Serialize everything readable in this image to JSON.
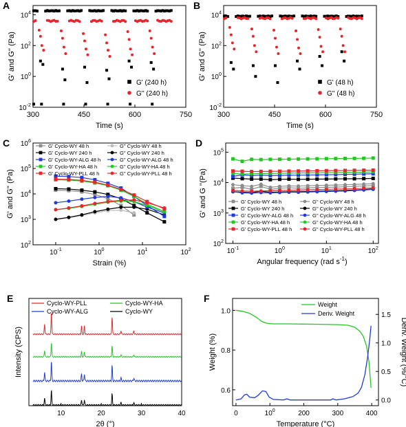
{
  "chart_data": [
    {
      "panel": "A",
      "type": "scatter",
      "xlabel": "Time (s)",
      "ylabel": "G' and G'' (Pa)",
      "xlim": [
        300,
        750
      ],
      "ylim_log10": [
        -2,
        4.6
      ],
      "x_ticks": [
        "300",
        "450",
        "600",
        "750"
      ],
      "y_ticks": [
        "10-2",
        "100",
        "102",
        "104"
      ],
      "legend_position": "bottom-right",
      "series": [
        {
          "name": "G'  (240 h)",
          "marker": "square",
          "color": "#000000",
          "high_value": 18000,
          "low_value": 0.016,
          "dips": [
            [
              322,
              10
            ],
            [
              329,
              6
            ],
            [
              387,
              3
            ],
            [
              394,
              0.6
            ],
            [
              452,
              4
            ],
            [
              459,
              0.4
            ],
            [
              517,
              2.5
            ],
            [
              524,
              0.7
            ],
            [
              583,
              10
            ],
            [
              590,
              4
            ],
            [
              648,
              8
            ],
            [
              655,
              3
            ]
          ]
        },
        {
          "name": "G''  (240 h)",
          "marker": "circle",
          "color": "#e8262a",
          "high_value": 4000,
          "dips": [
            [
              318,
              1000
            ],
            [
              322,
              400
            ],
            [
              326,
              100
            ],
            [
              331,
              50
            ],
            [
              383,
              900
            ],
            [
              387,
              300
            ],
            [
              391,
              80
            ],
            [
              396,
              30
            ],
            [
              448,
              600
            ],
            [
              452,
              200
            ],
            [
              456,
              60
            ],
            [
              461,
              25
            ],
            [
              513,
              500
            ],
            [
              517,
              150
            ],
            [
              521,
              50
            ],
            [
              526,
              20
            ],
            [
              579,
              800
            ],
            [
              583,
              250
            ],
            [
              587,
              60
            ],
            [
              592,
              25
            ],
            [
              644,
              900
            ],
            [
              648,
              300
            ],
            [
              652,
              80
            ],
            [
              657,
              30
            ]
          ]
        }
      ]
    },
    {
      "panel": "B",
      "type": "scatter",
      "xlabel": "Time (s)",
      "ylabel": "G' and G'' (Pa)",
      "xlim": [
        300,
        750
      ],
      "ylim_log10": [
        -2,
        4.6
      ],
      "x_ticks": [
        "300",
        "450",
        "600",
        "750"
      ],
      "y_ticks": [
        "10-2",
        "100",
        "102",
        "104"
      ],
      "legend_position": "bottom-right",
      "series": [
        {
          "name": "G'  (48 h)",
          "marker": "square",
          "color": "#000000",
          "high_value": 8000,
          "dips": [
            [
              322,
              8
            ],
            [
              329,
              3
            ],
            [
              387,
              5
            ],
            [
              394,
              1
            ],
            [
              452,
              5
            ],
            [
              459,
              0.4
            ],
            [
              517,
              10
            ],
            [
              524,
              3
            ],
            [
              583,
              20
            ],
            [
              590,
              5
            ],
            [
              648,
              40
            ],
            [
              655,
              10
            ]
          ]
        },
        {
          "name": "G''  (48 h)",
          "marker": "circle",
          "color": "#e8262a",
          "high_value": 6000,
          "dips": [
            [
              318,
              1500
            ],
            [
              322,
              500
            ],
            [
              326,
              150
            ],
            [
              331,
              60
            ],
            [
              383,
              1200
            ],
            [
              387,
              400
            ],
            [
              391,
              100
            ],
            [
              396,
              40
            ],
            [
              448,
              1000
            ],
            [
              452,
              300
            ],
            [
              456,
              80
            ],
            [
              461,
              30
            ],
            [
              513,
              900
            ],
            [
              517,
              250
            ],
            [
              521,
              70
            ],
            [
              526,
              30
            ],
            [
              579,
              1100
            ],
            [
              583,
              350
            ],
            [
              587,
              90
            ],
            [
              592,
              40
            ],
            [
              644,
              1200
            ],
            [
              648,
              400
            ],
            [
              652,
              100
            ],
            [
              657,
              40
            ]
          ]
        }
      ]
    },
    {
      "panel": "C",
      "type": "line",
      "xlabel": "Strain (%)",
      "ylabel": "G' and G'' (Pa)",
      "x_log": true,
      "y_log": true,
      "xlim": [
        0.03,
        100
      ],
      "ylim": [
        100,
        1000000
      ],
      "x_ticks": [
        "10-1",
        "100",
        "101",
        "102"
      ],
      "y_ticks": [
        "102",
        "103",
        "104",
        "105",
        "106"
      ],
      "legend_position": "top",
      "x": [
        0.1,
        0.2,
        0.4,
        0.8,
        1.6,
        3.2,
        6.4,
        12.8,
        32
      ],
      "series": [
        {
          "name": "G' Cyclo-WY 48 h",
          "color": "#8c8c8c",
          "marker": "square",
          "values": [
            14000,
            13500,
            12000,
            9500,
            6500,
            3500,
            1500,
            null,
            null
          ]
        },
        {
          "name": "G'' Cyclo-WY 48 h",
          "color": "#bdbdbd",
          "marker": "circle",
          "values": [
            1000,
            1150,
            1400,
            1800,
            2200,
            2300,
            1800,
            null,
            null
          ]
        },
        {
          "name": "G' Cyclo-WY 240 h",
          "color": "#000000",
          "marker": "square",
          "values": [
            16000,
            15500,
            14000,
            12000,
            9500,
            6500,
            3500,
            1800,
            800
          ]
        },
        {
          "name": "G'' Cyclo-WY 240 h",
          "color": "#000000",
          "marker": "circle",
          "values": [
            1000,
            1200,
            1500,
            2000,
            2500,
            3000,
            3000,
            2500,
            1500
          ]
        },
        {
          "name": "G' Cyclo-WY-ALG 48 h",
          "color": "#1f3bd8",
          "marker": "square",
          "values": [
            50000,
            48000,
            44000,
            36000,
            26000,
            17000,
            8000,
            3500,
            1300
          ]
        },
        {
          "name": "G'' Cyclo-WY-ALG 48 h",
          "color": "#1f3bd8",
          "marker": "circle",
          "values": [
            4500,
            5200,
            6200,
            7200,
            8000,
            7000,
            5000,
            3000,
            1800
          ]
        },
        {
          "name": "G' Cyclo-WY-HA 48 h",
          "color": "#22c822",
          "marker": "square",
          "values": [
            36000,
            35000,
            32000,
            27000,
            21000,
            14000,
            8000,
            4000,
            2000
          ]
        },
        {
          "name": "G'' Cyclo-WY-HA 48 h",
          "color": "#22c822",
          "marker": "circle",
          "values": [
            2400,
            2700,
            3200,
            3900,
            4700,
            5200,
            5000,
            3500,
            2000
          ]
        },
        {
          "name": "G' Cyclo-WY-PLL 48 h",
          "color": "#e8262a",
          "marker": "square",
          "values": [
            38000,
            37000,
            34000,
            29000,
            22000,
            15000,
            9000,
            5000,
            2600
          ]
        },
        {
          "name": "G'' Cyclo-WY-PLL 48 h",
          "color": "#e8262a",
          "marker": "circle",
          "values": [
            2400,
            2800,
            3400,
            4200,
            5000,
            5600,
            5800,
            4500,
            2800
          ]
        }
      ]
    },
    {
      "panel": "D",
      "type": "line",
      "xlabel": "Angular frequency (rad s-1)",
      "ylabel": "G' and G ''(Pa)",
      "x_log": true,
      "y_log": true,
      "xlim": [
        0.07,
        130
      ],
      "ylim": [
        100,
        200000
      ],
      "x_ticks": [
        "10-1",
        "100",
        "101",
        "102"
      ],
      "y_ticks": [
        "102",
        "103",
        "104",
        "105"
      ],
      "legend_position": "bottom",
      "x": [
        0.1,
        0.158,
        0.251,
        0.398,
        0.631,
        1.0,
        1.58,
        2.51,
        3.98,
        6.31,
        10,
        15.8,
        25.1,
        39.8,
        63.1,
        100
      ],
      "series": [
        {
          "name": "G' Cyclo-WY 48 h",
          "color": "#8c8c8c",
          "marker": "square",
          "values": [
            6500,
            7000,
            6000,
            7500,
            6000,
            6500,
            6800,
            6500,
            6700,
            6900,
            7000,
            7100,
            7300,
            7500,
            7700,
            8000
          ]
        },
        {
          "name": "G'' Cyclo-WY 48 h",
          "color": "#8c8c8c",
          "marker": "circle",
          "values": [
            8500,
            8000,
            7500,
            8800,
            7000,
            7500,
            7800,
            7700,
            7900,
            8000,
            8200,
            8300,
            8500,
            8700,
            8900,
            9200
          ]
        },
        {
          "name": "G' Cyclo-WY 240 h",
          "color": "#000000",
          "marker": "square",
          "values": [
            14000,
            13500,
            13000,
            13000,
            12500,
            12800,
            13000,
            12800,
            12900,
            13000,
            13100,
            13200,
            13300,
            13400,
            13500,
            13700
          ]
        },
        {
          "name": "G'' Cyclo-WY 240 h",
          "color": "#000000",
          "marker": "circle",
          "values": [
            5000,
            4800,
            4700,
            5200,
            4800,
            4900,
            5000,
            5000,
            5100,
            5200,
            5300,
            5400,
            5500,
            5700,
            5900,
            6200
          ]
        },
        {
          "name": "G' Cyclo-WY-ALG 48 h",
          "color": "#1f3bd8",
          "marker": "square",
          "values": [
            16000,
            18000,
            17000,
            17500,
            17000,
            17200,
            17400,
            17500,
            17700,
            17900,
            18100,
            18300,
            18600,
            18900,
            19200,
            19500
          ]
        },
        {
          "name": "G'' Cyclo-WY-ALG 48 h",
          "color": "#1f3bd8",
          "marker": "circle",
          "values": [
            5000,
            4600,
            4500,
            4700,
            4600,
            4700,
            4800,
            4800,
            4900,
            5000,
            5100,
            5200,
            5300,
            5500,
            5700,
            6000
          ]
        },
        {
          "name": "G' Cyclo-WY-HA 48 h",
          "color": "#22c822",
          "marker": "square",
          "values": [
            60000,
            50000,
            58000,
            57000,
            58000,
            58500,
            59000,
            59500,
            60000,
            60500,
            61000,
            61500,
            62000,
            62500,
            63000,
            64000
          ]
        },
        {
          "name": "G'' Cyclo-WY-HA 48 h",
          "color": "#22c822",
          "marker": "circle",
          "values": [
            20000,
            19000,
            19500,
            19800,
            20000,
            20200,
            20400,
            20600,
            20800,
            21000,
            21200,
            21400,
            21600,
            21800,
            22000,
            22500
          ]
        },
        {
          "name": "G' Cyclo-WY-PLL 48 h",
          "color": "#e8262a",
          "marker": "square",
          "values": [
            24000,
            23500,
            23000,
            23200,
            23400,
            23600,
            23800,
            24000,
            24200,
            24400,
            24600,
            24800,
            25000,
            25200,
            25400,
            25600
          ]
        },
        {
          "name": "G'' Cyclo-WY-PLL 48 h",
          "color": "#e8262a",
          "marker": "circle",
          "values": [
            5500,
            5300,
            5200,
            5300,
            5400,
            5500,
            5600,
            5700,
            5800,
            5900,
            6000,
            6100,
            6200,
            6300,
            6500,
            6700
          ]
        }
      ]
    },
    {
      "panel": "E",
      "type": "line",
      "xlabel": "2θ (°)",
      "ylabel": "Intensity (CPS)",
      "xlim": [
        2,
        40
      ],
      "x_ticks": [
        "10",
        "20",
        "30",
        "40"
      ],
      "legend_position": "top",
      "peaks_2theta": [
        5.9,
        7.6,
        15.1,
        15.8,
        22.7,
        24.9,
        28.1
      ],
      "series": [
        {
          "name": "Cyclo-WY-PLL",
          "color": "#e8262a",
          "order": 1
        },
        {
          "name": "Cyclo-WY-HA",
          "color": "#22c822",
          "order": 2
        },
        {
          "name": "Cyclo-WY-ALG",
          "color": "#1f3bd8",
          "order": 3
        },
        {
          "name": "Cyclo-WY",
          "color": "#000000",
          "order": 4
        }
      ]
    },
    {
      "panel": "F",
      "type": "line",
      "xlabel": "Temperature (°C)",
      "ylabel": "Weight (%)",
      "ylabel_right": "Deriv. Weight (%/°C)",
      "xlim": [
        -10,
        420
      ],
      "ylim": [
        0.52,
        1.06
      ],
      "ylim_right": [
        -0.1,
        1.78
      ],
      "x_ticks": [
        "0",
        "100",
        "200",
        "300",
        "400"
      ],
      "y_ticks": [
        "0.6",
        "0.8",
        "1.0"
      ],
      "y_ticks_right": [
        "0.0",
        "0.5",
        "1.0",
        "1.5"
      ],
      "legend_position": "top-right",
      "series": [
        {
          "name": "Weight",
          "color": "#22c822",
          "axis": "left",
          "x": [
            0,
            20,
            40,
            60,
            75,
            90,
            110,
            150,
            200,
            250,
            300,
            330,
            350,
            365,
            375,
            385,
            392,
            398
          ],
          "values": [
            1.0,
            0.995,
            0.985,
            0.965,
            0.945,
            0.935,
            0.932,
            0.932,
            0.931,
            0.93,
            0.928,
            0.925,
            0.915,
            0.895,
            0.87,
            0.82,
            0.74,
            0.61
          ]
        },
        {
          "name": "Deriv. Weight",
          "color": "#1f3bd8",
          "axis": "right",
          "x": [
            0,
            15,
            25,
            32,
            40,
            55,
            65,
            78,
            88,
            98,
            110,
            140,
            150,
            160,
            200,
            250,
            280,
            285,
            295,
            320,
            345,
            360,
            370,
            380,
            388,
            394,
            398
          ],
          "values": [
            0.0,
            0.02,
            0.09,
            0.1,
            0.05,
            0.04,
            0.08,
            0.16,
            0.15,
            0.05,
            0.01,
            0.0,
            0.02,
            0.0,
            0.0,
            0.0,
            0.0,
            0.02,
            0.0,
            0.02,
            0.06,
            0.12,
            0.22,
            0.45,
            0.75,
            1.05,
            1.3
          ]
        }
      ]
    }
  ]
}
